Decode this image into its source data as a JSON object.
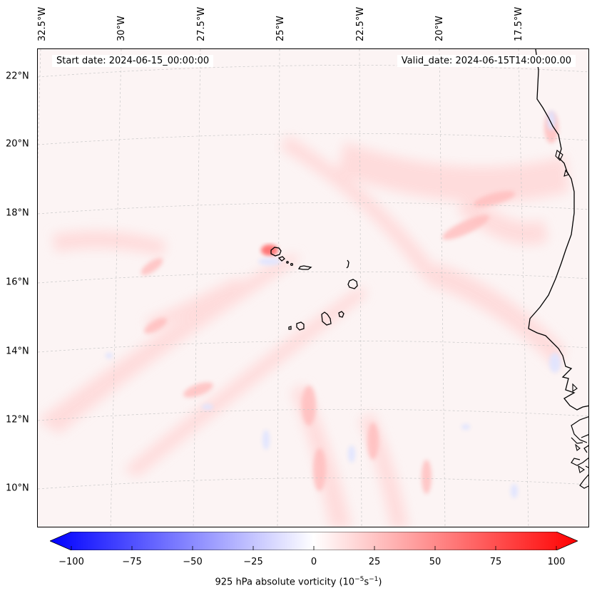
{
  "map": {
    "start_label": "Start date: 2024-06-15_00:00:00",
    "valid_label": "Valid_date: 2024-06-15T14:00:00.00",
    "lat_labels": [
      "22°N",
      "20°N",
      "18°N",
      "16°N",
      "14°N",
      "12°N",
      "10°N"
    ],
    "lon_labels": [
      "32.5°W",
      "30°W",
      "27.5°W",
      "25°W",
      "22.5°W",
      "20°W",
      "17.5°W"
    ],
    "variable": "925 hPa absolute vorticity",
    "features": [
      "coastline-west-africa",
      "cape-verde-islands"
    ],
    "colormap": "bwr",
    "colors": {
      "neg": "#0000ff",
      "pos": "#ff0000",
      "mid": "#ffffff",
      "background": "#fcf4f4",
      "coast": "#000000"
    }
  },
  "colorbar": {
    "ticks": [
      "−100",
      "−75",
      "−50",
      "−25",
      "0",
      "25",
      "50",
      "75",
      "100"
    ],
    "label_prefix": "925 hPa absolute vorticity (10",
    "label_exp1": "−5",
    "label_mid": "s",
    "label_exp2": "−1",
    "label_suffix": ")"
  }
}
